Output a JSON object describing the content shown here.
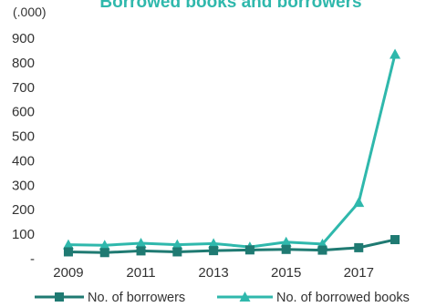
{
  "chart_data": {
    "type": "line",
    "title": "Borrowed books and borrowers",
    "unit_label": "(.000)",
    "x": [
      2009,
      2010,
      2011,
      2012,
      2013,
      2014,
      2015,
      2016,
      2017,
      2018
    ],
    "x_tick_labels": [
      "2009",
      "2011",
      "2013",
      "2015",
      "2017"
    ],
    "y_tick_labels": [
      "-",
      "100",
      "200",
      "300",
      "400",
      "500",
      "600",
      "700",
      "800",
      "900"
    ],
    "ylim": [
      0,
      900
    ],
    "grid": false,
    "legend_position": "bottom",
    "series": [
      {
        "name": "No. of borrowers",
        "color": "#1f7a72",
        "marker": "square",
        "values": [
          28,
          25,
          32,
          28,
          33,
          36,
          38,
          35,
          45,
          78
        ]
      },
      {
        "name": "No. of borrowed books",
        "color": "#2fb8ac",
        "marker": "triangle",
        "values": [
          57,
          55,
          63,
          57,
          62,
          48,
          68,
          60,
          230,
          835
        ]
      }
    ],
    "colors": {
      "title": "#2fb8ac",
      "axis": "#333333"
    }
  }
}
